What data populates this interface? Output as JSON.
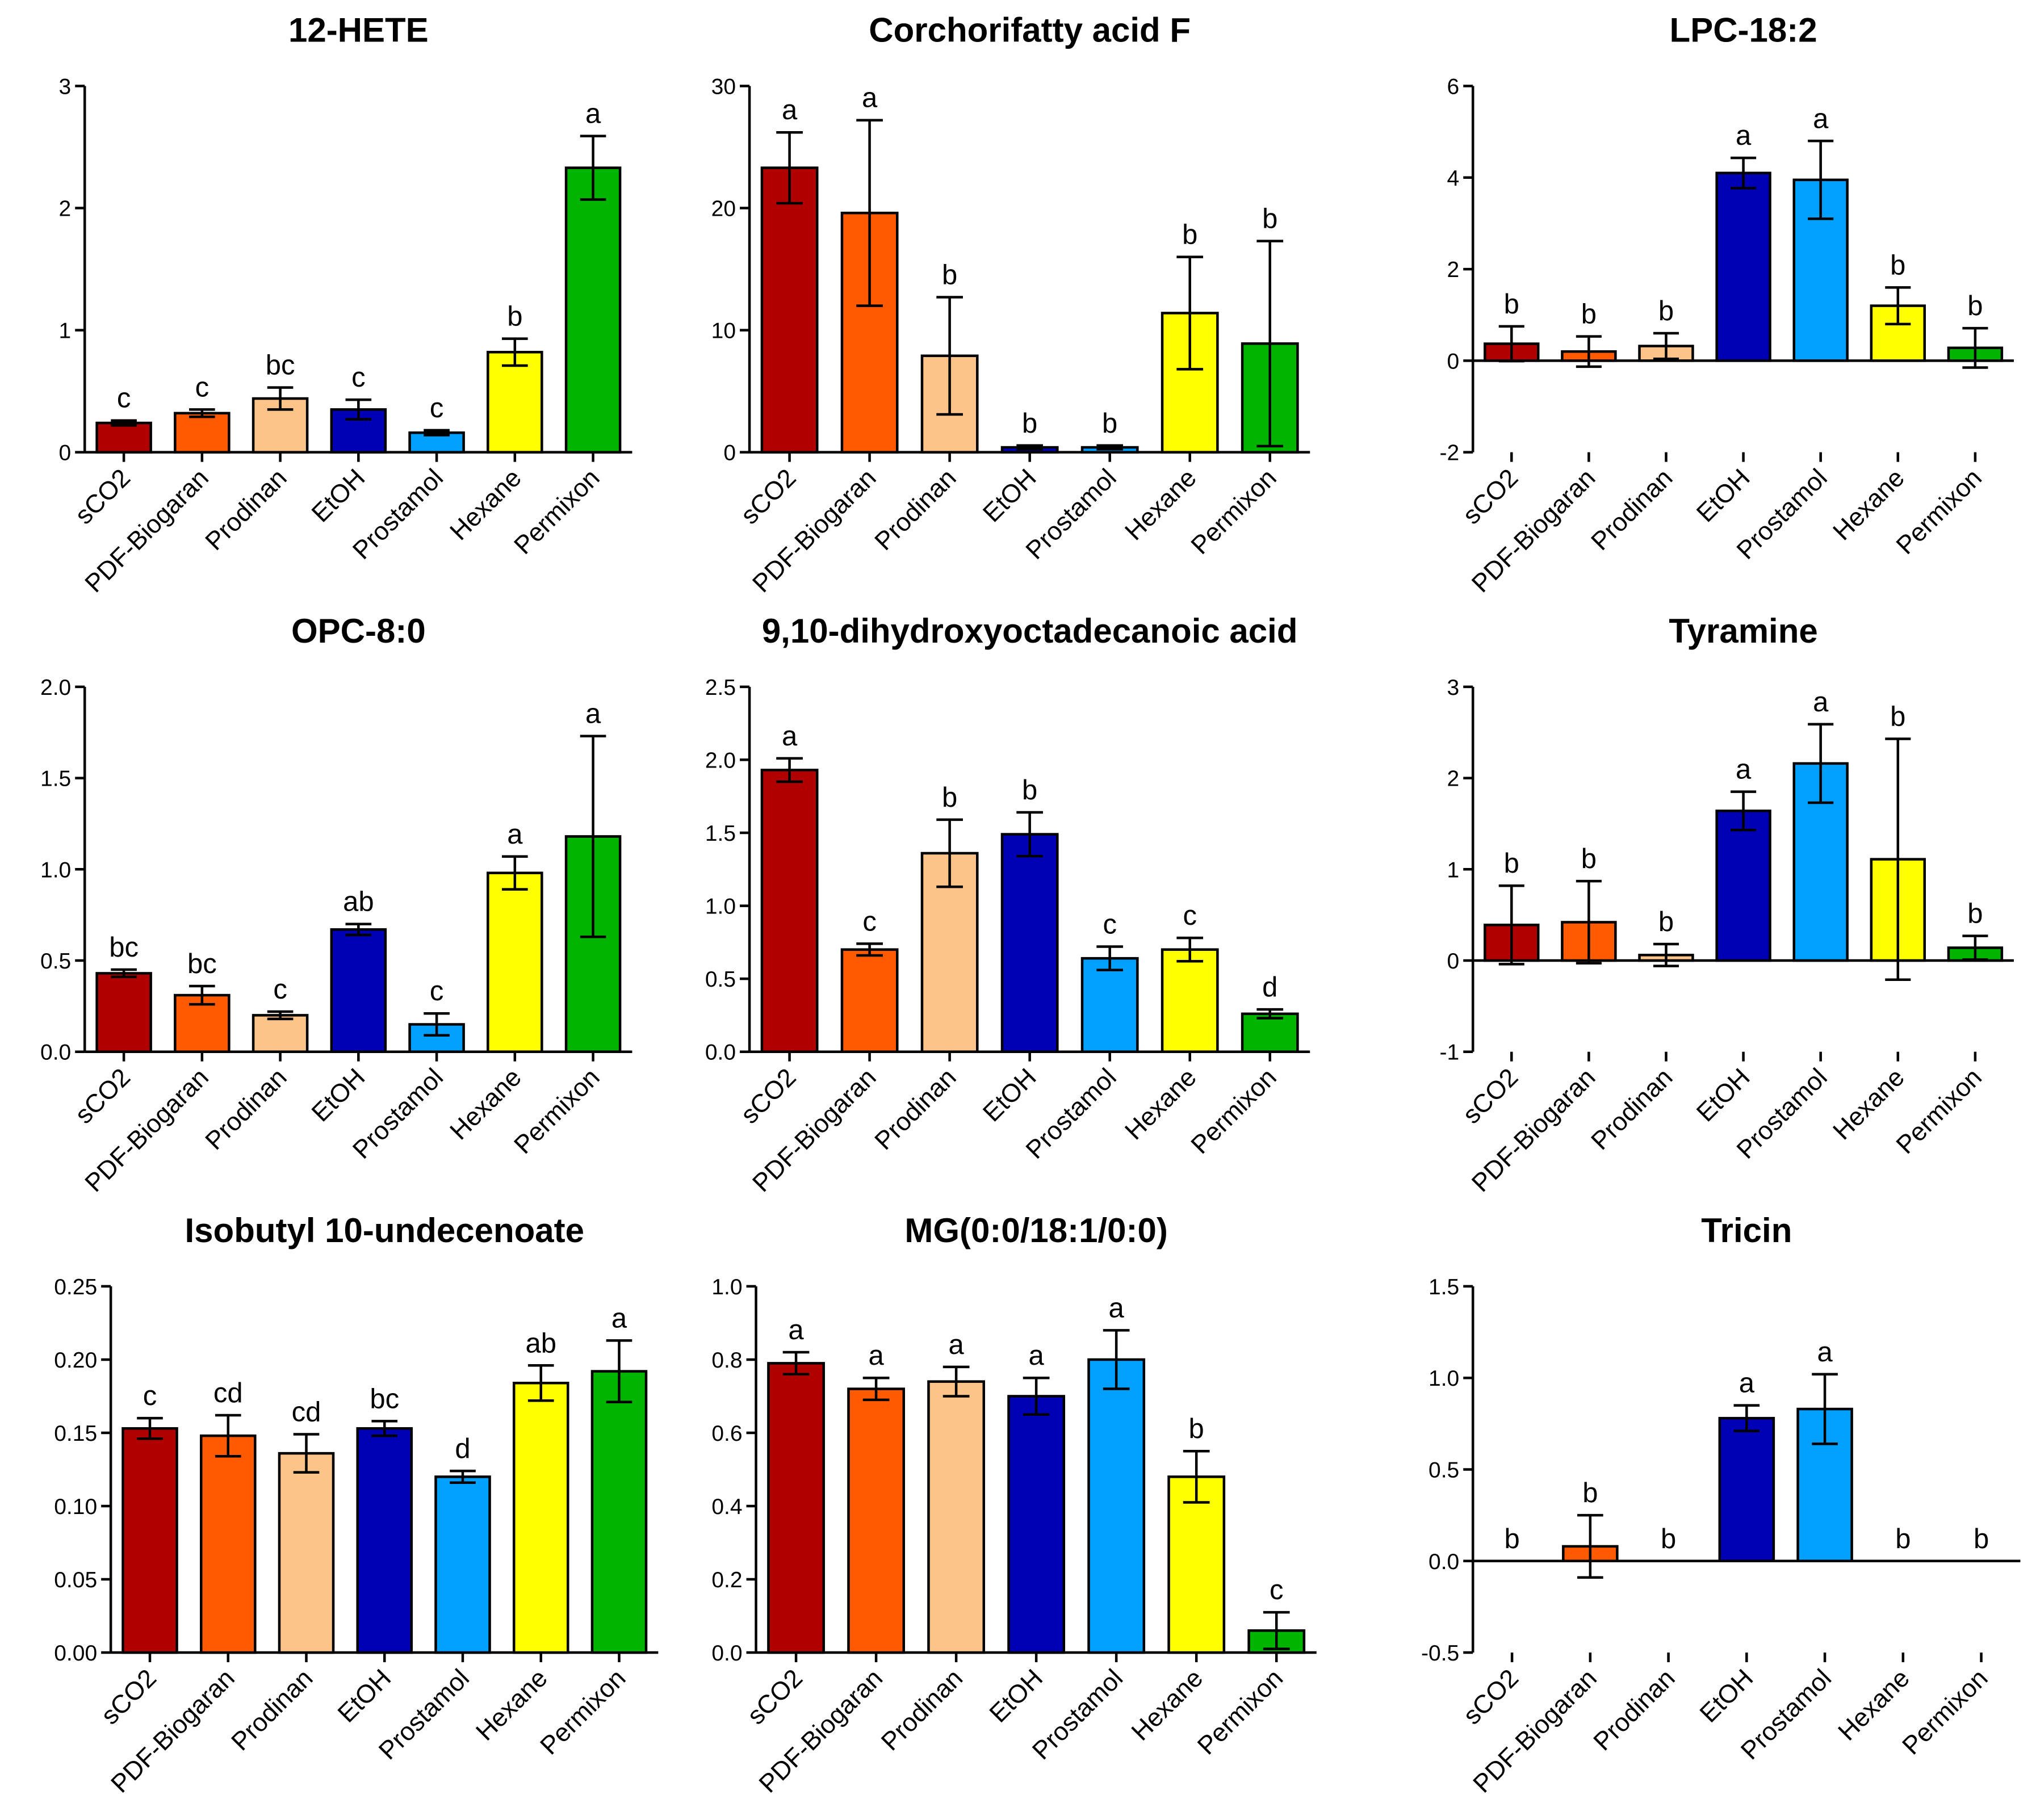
{
  "colors": {
    "sCO2": "#b00000",
    "PDF-Biogaran": "#ff5a00",
    "Prodinan": "#fcc488",
    "EtOH": "#0000b4",
    "Prostamol": "#00a0ff",
    "Hexane": "#ffff00",
    "Permixon": "#00b400"
  },
  "chart_data": [
    {
      "type": "bar",
      "title": "12-HETE",
      "categories": [
        "sCO2",
        "PDF-Biogaran",
        "Prodinan",
        "EtOH",
        "Prostamol",
        "Hexane",
        "Permixon"
      ],
      "values": [
        0.24,
        0.32,
        0.44,
        0.35,
        0.16,
        0.82,
        2.33
      ],
      "errors": [
        0.02,
        0.03,
        0.09,
        0.08,
        0.02,
        0.11,
        0.26
      ],
      "letters": [
        "c",
        "c",
        "bc",
        "c",
        "c",
        "b",
        "a"
      ],
      "ylim": [
        0,
        3
      ],
      "yticks": [
        "0",
        "1",
        "2",
        "3"
      ],
      "ytick_values": [
        0,
        1,
        2,
        3
      ]
    },
    {
      "type": "bar",
      "title": "Corchorifatty acid F",
      "categories": [
        "sCO2",
        "PDF-Biogaran",
        "Prodinan",
        "EtOH",
        "Prostamol",
        "Hexane",
        "Permixon"
      ],
      "values": [
        23.3,
        19.6,
        7.9,
        0.4,
        0.4,
        11.4,
        8.9
      ],
      "errors": [
        2.9,
        7.6,
        4.8,
        0.15,
        0.15,
        4.6,
        8.4
      ],
      "letters": [
        "a",
        "a",
        "b",
        "b",
        "b",
        "b",
        "b"
      ],
      "ylim": [
        0,
        30
      ],
      "yticks": [
        "0",
        "10",
        "20",
        "30"
      ],
      "ytick_values": [
        0,
        10,
        20,
        30
      ]
    },
    {
      "type": "bar",
      "title": "LPC-18:2",
      "categories": [
        "sCO2",
        "PDF-Biogaran",
        "Prodinan",
        "EtOH",
        "Prostamol",
        "Hexane",
        "Permixon"
      ],
      "values": [
        0.37,
        0.2,
        0.32,
        4.1,
        3.95,
        1.2,
        0.28
      ],
      "errors": [
        0.38,
        0.33,
        0.28,
        0.33,
        0.85,
        0.4,
        0.43
      ],
      "letters": [
        "b",
        "b",
        "b",
        "a",
        "a",
        "b",
        "b"
      ],
      "ylim": [
        -2,
        6
      ],
      "yticks": [
        "-2",
        "0",
        "2",
        "4",
        "6"
      ],
      "ytick_values": [
        -2,
        0,
        2,
        4,
        6
      ]
    },
    {
      "type": "bar",
      "title": "OPC-8:0",
      "categories": [
        "sCO2",
        "PDF-Biogaran",
        "Prodinan",
        "EtOH",
        "Prostamol",
        "Hexane",
        "Permixon"
      ],
      "values": [
        0.43,
        0.31,
        0.2,
        0.67,
        0.15,
        0.98,
        1.18
      ],
      "errors": [
        0.02,
        0.05,
        0.02,
        0.03,
        0.06,
        0.09,
        0.55
      ],
      "letters": [
        "bc",
        "bc",
        "c",
        "ab",
        "c",
        "a",
        "a"
      ],
      "ylim": [
        0,
        2
      ],
      "yticks": [
        "0.0",
        "0.5",
        "1.0",
        "1.5",
        "2.0"
      ],
      "ytick_values": [
        0,
        0.5,
        1,
        1.5,
        2
      ]
    },
    {
      "type": "bar",
      "title": "9,10-dihydroxyoctadecanoic acid",
      "categories": [
        "sCO2",
        "PDF-Biogaran",
        "Prodinan",
        "EtOH",
        "Prostamol",
        "Hexane",
        "Permixon"
      ],
      "values": [
        1.93,
        0.7,
        1.36,
        1.49,
        0.64,
        0.7,
        0.26
      ],
      "errors": [
        0.08,
        0.04,
        0.23,
        0.15,
        0.08,
        0.08,
        0.03
      ],
      "letters": [
        "a",
        "c",
        "b",
        "b",
        "c",
        "c",
        "d"
      ],
      "ylim": [
        0,
        2.5
      ],
      "yticks": [
        "0.0",
        "0.5",
        "1.0",
        "1.5",
        "2.0",
        "2.5"
      ],
      "ytick_values": [
        0,
        0.5,
        1,
        1.5,
        2,
        2.5
      ]
    },
    {
      "type": "bar",
      "title": "Tyramine",
      "categories": [
        "sCO2",
        "PDF-Biogaran",
        "Prodinan",
        "EtOH",
        "Prostamol",
        "Hexane",
        "Permixon"
      ],
      "values": [
        0.39,
        0.42,
        0.06,
        1.64,
        2.16,
        1.11,
        0.14
      ],
      "errors": [
        0.43,
        0.45,
        0.12,
        0.21,
        0.43,
        1.32,
        0.13
      ],
      "letters": [
        "b",
        "b",
        "b",
        "a",
        "a",
        "b",
        "b"
      ],
      "ylim": [
        -1,
        3
      ],
      "yticks": [
        "-1",
        "0",
        "1",
        "2",
        "3"
      ],
      "ytick_values": [
        -1,
        0,
        1,
        2,
        3
      ]
    },
    {
      "type": "bar",
      "title": "Isobutyl 10-undecenoate",
      "categories": [
        "sCO2",
        "PDF-Biogaran",
        "Prodinan",
        "EtOH",
        "Prostamol",
        "Hexane",
        "Permixon"
      ],
      "values": [
        0.153,
        0.148,
        0.136,
        0.153,
        0.12,
        0.184,
        0.192
      ],
      "errors": [
        0.007,
        0.014,
        0.013,
        0.005,
        0.004,
        0.012,
        0.021
      ],
      "letters": [
        "c",
        "cd",
        "cd",
        "bc",
        "d",
        "ab",
        "a"
      ],
      "ylim": [
        0,
        0.25
      ],
      "yticks": [
        "0.00",
        "0.05",
        "0.10",
        "0.15",
        "0.20",
        "0.25"
      ],
      "ytick_values": [
        0,
        0.05,
        0.1,
        0.15,
        0.2,
        0.25
      ]
    },
    {
      "type": "bar",
      "title": "MG(0:0/18:1/0:0)",
      "categories": [
        "sCO2",
        "PDF-Biogaran",
        "Prodinan",
        "EtOH",
        "Prostamol",
        "Hexane",
        "Permixon"
      ],
      "values": [
        0.79,
        0.72,
        0.74,
        0.7,
        0.8,
        0.48,
        0.06
      ],
      "errors": [
        0.03,
        0.03,
        0.04,
        0.05,
        0.08,
        0.07,
        0.05
      ],
      "letters": [
        "a",
        "a",
        "a",
        "a",
        "a",
        "b",
        "c"
      ],
      "ylim": [
        0,
        1
      ],
      "yticks": [
        "0.0",
        "0.2",
        "0.4",
        "0.6",
        "0.8",
        "1.0"
      ],
      "ytick_values": [
        0,
        0.2,
        0.4,
        0.6,
        0.8,
        1
      ]
    },
    {
      "type": "bar",
      "title": "Tricin",
      "categories": [
        "sCO2",
        "PDF-Biogaran",
        "Prodinan",
        "EtOH",
        "Prostamol",
        "Hexane",
        "Permixon"
      ],
      "values": [
        0,
        0.08,
        0,
        0.78,
        0.83,
        0,
        0
      ],
      "errors": [
        0,
        0.17,
        0,
        0.07,
        0.19,
        0,
        0
      ],
      "letters": [
        "b",
        "b",
        "b",
        "a",
        "a",
        "b",
        "b"
      ],
      "ylim": [
        -0.5,
        1.5
      ],
      "yticks": [
        "-0.5",
        "0.0",
        "0.5",
        "1.0",
        "1.5"
      ],
      "ytick_values": [
        -0.5,
        0,
        0.5,
        1,
        1.5
      ]
    }
  ]
}
